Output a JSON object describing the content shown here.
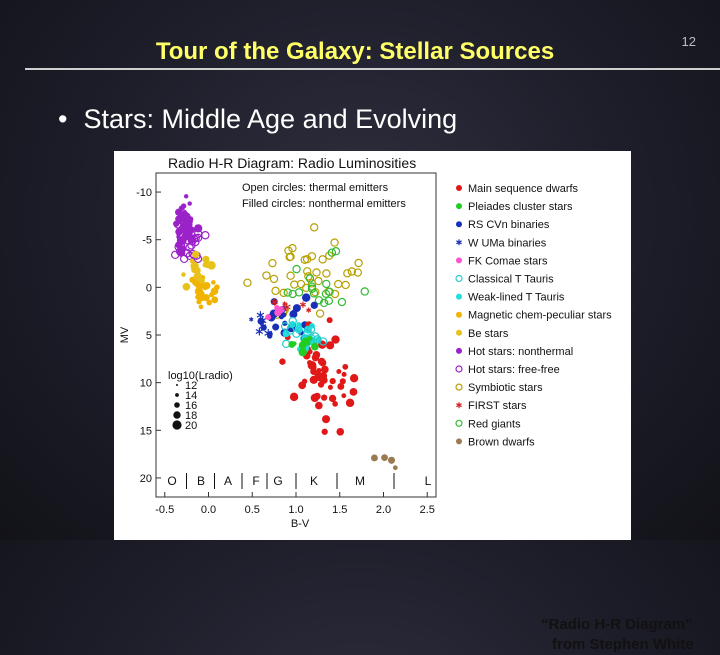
{
  "slide": {
    "title": "Tour of the Galaxy: Stellar Sources",
    "number": "12",
    "bullet": "Stars: Middle Age and Evolving",
    "caption_line1": "“Radio H-R Diagram”",
    "caption_line2": "from Stephen White"
  },
  "chart_data": {
    "type": "scatter",
    "title": "Radio H-R Diagram: Radio Luminosities",
    "xlabel": "B-V",
    "ylabel": "MV",
    "xlim": [
      -0.6,
      2.6
    ],
    "ylim": [
      -12,
      22
    ],
    "y_inverted": true,
    "xticks": [
      "-0.5",
      "0.0",
      "0.5",
      "1.0",
      "1.5",
      "2.0",
      "2.5"
    ],
    "yticks": [
      "-10",
      "-5",
      "0",
      "5",
      "10",
      "15",
      "20"
    ],
    "notes": [
      "Open circles: thermal emitters",
      "Filled circles: nonthermal emitters"
    ],
    "size_legend_title": "log10(Lradio)",
    "size_legend": [
      "12",
      "14",
      "16",
      "18",
      "20"
    ],
    "spectral_classes": [
      "O",
      "B",
      "A",
      "F",
      "G",
      "K",
      "M",
      "L"
    ],
    "legend_placement": "right",
    "series": [
      {
        "name": "Main sequence dwarfs",
        "color": "#e01818",
        "marker": "filled"
      },
      {
        "name": "Pleiades cluster stars",
        "color": "#22cc22",
        "marker": "filled"
      },
      {
        "name": "RS CVn binaries",
        "color": "#1a2fb8",
        "marker": "filled"
      },
      {
        "name": "W UMa binaries",
        "color": "#1a2fb8",
        "marker": "star"
      },
      {
        "name": "FK Comae stars",
        "color": "#ff55cc",
        "marker": "filled"
      },
      {
        "name": "Classical T Tauris",
        "color": "#22cccc",
        "marker": "open"
      },
      {
        "name": "Weak-lined T Tauris",
        "color": "#22dddd",
        "marker": "filled"
      },
      {
        "name": "Magnetic chem-peculiar stars",
        "color": "#f0b400",
        "marker": "filled"
      },
      {
        "name": "Be stars",
        "color": "#e8c21a",
        "marker": "filled"
      },
      {
        "name": "Hot stars: nonthermal",
        "color": "#9b22c8",
        "marker": "filled"
      },
      {
        "name": "Hot stars: free-free",
        "color": "#9b22c8",
        "marker": "open"
      },
      {
        "name": "Symbiotic stars",
        "color": "#b8a000",
        "marker": "open"
      },
      {
        "name": "FIRST stars",
        "color": "#d42020",
        "marker": "star"
      },
      {
        "name": "Red giants",
        "color": "#33bb33",
        "marker": "open"
      },
      {
        "name": "Brown dwarfs",
        "color": "#9a7a50",
        "marker": "filled"
      }
    ],
    "clusters": [
      {
        "series": 9,
        "marker": "filled",
        "color": "#9b22c8",
        "n": 40,
        "cx": -0.28,
        "cy": -6.5,
        "sx": 0.08,
        "sy": 1.6
      },
      {
        "series": 10,
        "marker": "open",
        "color": "#9b22c8",
        "n": 28,
        "cx": -0.2,
        "cy": -5.5,
        "sx": 0.1,
        "sy": 2.0
      },
      {
        "series": 7,
        "marker": "filled",
        "color": "#f0b400",
        "n": 26,
        "cx": -0.05,
        "cy": 0.3,
        "sx": 0.1,
        "sy": 1.0
      },
      {
        "series": 8,
        "marker": "filled",
        "color": "#e8c21a",
        "n": 14,
        "cx": -0.1,
        "cy": -2.0,
        "sx": 0.12,
        "sy": 1.0
      },
      {
        "series": 11,
        "marker": "open",
        "color": "#b8a000",
        "n": 40,
        "cx": 1.1,
        "cy": -1.5,
        "sx": 0.45,
        "sy": 2.8
      },
      {
        "series": 13,
        "marker": "open",
        "color": "#33bb33",
        "n": 18,
        "cx": 1.3,
        "cy": -0.5,
        "sx": 0.25,
        "sy": 2.0
      },
      {
        "series": 2,
        "marker": "filled",
        "color": "#1a2fb8",
        "n": 26,
        "cx": 0.9,
        "cy": 3.5,
        "sx": 0.22,
        "sy": 1.4
      },
      {
        "series": 3,
        "marker": "star",
        "color": "#1a2fb8",
        "n": 6,
        "cx": 0.6,
        "cy": 3.5,
        "sx": 0.15,
        "sy": 1.0
      },
      {
        "series": 0,
        "marker": "filled",
        "color": "#e01818",
        "n": 50,
        "cx": 1.3,
        "cy": 9.5,
        "sx": 0.3,
        "sy": 3.5
      },
      {
        "series": 6,
        "marker": "filled",
        "color": "#22dddd",
        "n": 18,
        "cx": 1.1,
        "cy": 5.5,
        "sx": 0.15,
        "sy": 1.2
      },
      {
        "series": 5,
        "marker": "open",
        "color": "#22cccc",
        "n": 12,
        "cx": 1.0,
        "cy": 4.5,
        "sx": 0.2,
        "sy": 1.2
      },
      {
        "series": 1,
        "marker": "filled",
        "color": "#22cc22",
        "n": 8,
        "cx": 1.1,
        "cy": 6.0,
        "sx": 0.2,
        "sy": 0.8
      },
      {
        "series": 4,
        "marker": "filled",
        "color": "#ff55cc",
        "n": 4,
        "cx": 0.8,
        "cy": 2.5,
        "sx": 0.1,
        "sy": 0.5
      },
      {
        "series": 12,
        "marker": "star",
        "color": "#d42020",
        "n": 5,
        "cx": 1.1,
        "cy": 2.0,
        "sx": 0.25,
        "sy": 1.2
      },
      {
        "series": 14,
        "marker": "filled",
        "color": "#9a7a50",
        "n": 4,
        "cx": 2.0,
        "cy": 18.5,
        "sx": 0.1,
        "sy": 1.0
      }
    ]
  }
}
